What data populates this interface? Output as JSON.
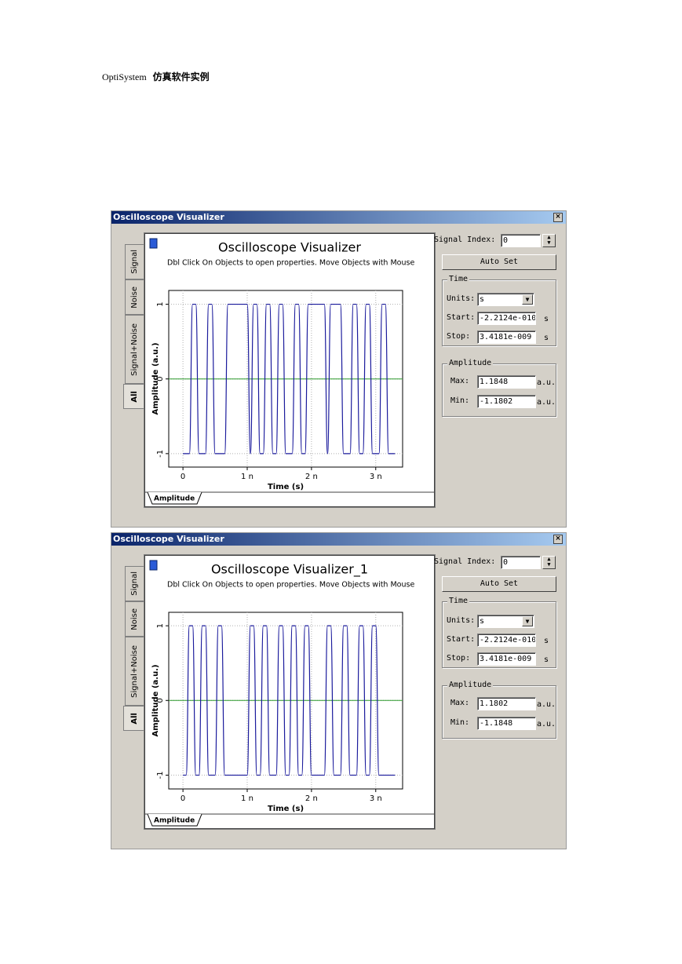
{
  "header": {
    "app": "OptiSystem",
    "title": "仿真软件实例"
  },
  "windows": [
    {
      "title": "Oscilloscope Visualizer",
      "tabs": [
        "Signal",
        "Noise",
        "Signal+Noise",
        "All"
      ],
      "bottom_tab": "Amplitude",
      "chart_data": {
        "type": "line",
        "title": "Oscilloscope Visualizer",
        "subtitle": "Dbl Click On Objects to open properties.  Move Objects with Mouse",
        "x_label": "Time (s)",
        "y_label": "Amplitude (a.u.)",
        "xlim": [
          -2.2124e-10,
          3.4181e-09
        ],
        "ylim": [
          -1.1802,
          1.1848
        ],
        "xticks": [
          0,
          {
            "value": 1e-09,
            "label": "1 n"
          },
          {
            "value": 2e-09,
            "label": "2 n"
          },
          {
            "value": 3e-09,
            "label": "3 n"
          }
        ],
        "yticks": [
          -1,
          0,
          1
        ],
        "grid": true,
        "x": [
          0,
          5e-11,
          1e-10,
          1.5e-10,
          2e-10,
          2.5e-10,
          3e-10,
          3.5e-10,
          4e-10,
          4.5e-10,
          5e-10,
          5.5e-10,
          6e-10,
          6.5e-10,
          7e-10,
          7.5e-10,
          8e-10,
          8.5e-10,
          9e-10,
          9.5e-10,
          1e-09,
          1.05e-09,
          1.1e-09,
          1.15e-09,
          1.2e-09,
          1.25e-09,
          1.3e-09,
          1.35e-09,
          1.4e-09,
          1.45e-09,
          1.5e-09,
          1.55e-09,
          1.6e-09,
          1.65e-09,
          1.7e-09,
          1.75e-09,
          1.8e-09,
          1.85e-09,
          1.9e-09,
          1.95e-09,
          2e-09,
          2.05e-09,
          2.1e-09,
          2.15e-09,
          2.2e-09,
          2.25e-09,
          2.3e-09,
          2.35e-09,
          2.4e-09,
          2.45e-09,
          2.5e-09,
          2.55e-09,
          2.6e-09,
          2.65e-09,
          2.7e-09,
          2.75e-09,
          2.8e-09,
          2.85e-09,
          2.9e-09,
          2.95e-09,
          3e-09,
          3.05e-09,
          3.1e-09,
          3.15e-09,
          3.2e-09,
          3.25e-09,
          3.3e-09
        ],
        "series": [
          {
            "color": "#1a1a9c",
            "values": [
              -1,
              -1,
              -1,
              1,
              1,
              -1,
              -1,
              -1,
              1,
              1,
              -1,
              -1,
              -1,
              -1,
              1,
              1,
              1,
              1,
              1,
              1,
              1,
              -1,
              1,
              1,
              -1,
              -1,
              1,
              1,
              -1,
              -1,
              1,
              1,
              -1,
              -1,
              -1,
              1,
              1,
              -1,
              -1,
              1,
              1,
              1,
              1,
              1,
              1,
              -1,
              1,
              1,
              1,
              1,
              -1,
              -1,
              -1,
              1,
              1,
              -1,
              -1,
              1,
              1,
              -1,
              -1,
              -1,
              1,
              1,
              -1,
              -1,
              -1
            ]
          }
        ]
      },
      "panel": {
        "signal_index_label": "Signal Index:",
        "signal_index": "0",
        "auto_set": "Auto Set",
        "time_group": "Time",
        "units_label": "Units:",
        "units": "s",
        "start_label": "Start:",
        "start": "-2.2124e-010",
        "start_unit": "s",
        "stop_label": "Stop:",
        "stop": "3.4181e-009",
        "stop_unit": "s",
        "amplitude_group": "Amplitude",
        "max_label": "Max:",
        "max": "1.1848",
        "max_unit": "a.u.",
        "min_label": "Min:",
        "min": "-1.1802",
        "min_unit": "a.u."
      }
    },
    {
      "title": "Oscilloscope Visualizer",
      "tabs": [
        "Signal",
        "Noise",
        "Signal+Noise",
        "All"
      ],
      "bottom_tab": "Amplitude",
      "chart_data": {
        "type": "line",
        "title": "Oscilloscope Visualizer_1",
        "subtitle": "Dbl Click On Objects to open properties.  Move Objects with Mouse",
        "x_label": "Time (s)",
        "y_label": "Amplitude (a.u.)",
        "xlim": [
          -2.2124e-10,
          3.4181e-09
        ],
        "ylim": [
          -1.1848,
          1.1802
        ],
        "xticks": [
          0,
          {
            "value": 1e-09,
            "label": "1 n"
          },
          {
            "value": 2e-09,
            "label": "2 n"
          },
          {
            "value": 3e-09,
            "label": "3 n"
          }
        ],
        "yticks": [
          -1,
          0,
          1
        ],
        "grid": true,
        "x": [
          0,
          5e-11,
          1e-10,
          1.5e-10,
          2e-10,
          2.5e-10,
          3e-10,
          3.5e-10,
          4e-10,
          4.5e-10,
          5e-10,
          5.5e-10,
          6e-10,
          6.5e-10,
          7e-10,
          7.5e-10,
          8e-10,
          8.5e-10,
          9e-10,
          9.5e-10,
          1e-09,
          1.05e-09,
          1.1e-09,
          1.15e-09,
          1.2e-09,
          1.25e-09,
          1.3e-09,
          1.35e-09,
          1.4e-09,
          1.45e-09,
          1.5e-09,
          1.55e-09,
          1.6e-09,
          1.65e-09,
          1.7e-09,
          1.75e-09,
          1.8e-09,
          1.85e-09,
          1.9e-09,
          1.95e-09,
          2e-09,
          2.05e-09,
          2.1e-09,
          2.15e-09,
          2.2e-09,
          2.25e-09,
          2.3e-09,
          2.35e-09,
          2.4e-09,
          2.45e-09,
          2.5e-09,
          2.55e-09,
          2.6e-09,
          2.65e-09,
          2.7e-09,
          2.75e-09,
          2.8e-09,
          2.85e-09,
          2.9e-09,
          2.95e-09,
          3e-09,
          3.05e-09,
          3.1e-09,
          3.15e-09,
          3.2e-09,
          3.25e-09,
          3.3e-09
        ],
        "series": [
          {
            "color": "#1a1a9c",
            "values": [
              -1,
              -1,
              1,
              1,
              -1,
              -1,
              1,
              1,
              -1,
              -1,
              -1,
              1,
              1,
              -1,
              -1,
              -1,
              -1,
              -1,
              -1,
              -1,
              -1,
              1,
              1,
              -1,
              -1,
              1,
              1,
              -1,
              -1,
              -1,
              1,
              1,
              -1,
              -1,
              1,
              1,
              -1,
              -1,
              1,
              1,
              -1,
              -1,
              -1,
              -1,
              -1,
              1,
              1,
              -1,
              -1,
              -1,
              1,
              1,
              -1,
              -1,
              -1,
              1,
              1,
              -1,
              -1,
              1,
              1,
              -1,
              -1,
              -1,
              -1,
              -1,
              -1
            ]
          }
        ]
      },
      "panel": {
        "signal_index_label": "Signal Index:",
        "signal_index": "0",
        "auto_set": "Auto Set",
        "time_group": "Time",
        "units_label": "Units:",
        "units": "s",
        "start_label": "Start:",
        "start": "-2.2124e-010",
        "start_unit": "s",
        "stop_label": "Stop:",
        "stop": "3.4181e-009",
        "stop_unit": "s",
        "amplitude_group": "Amplitude",
        "max_label": "Max:",
        "max": "1.1802",
        "max_unit": "a.u.",
        "min_label": "Min:",
        "min": "-1.1848",
        "min_unit": "a.u."
      }
    }
  ]
}
